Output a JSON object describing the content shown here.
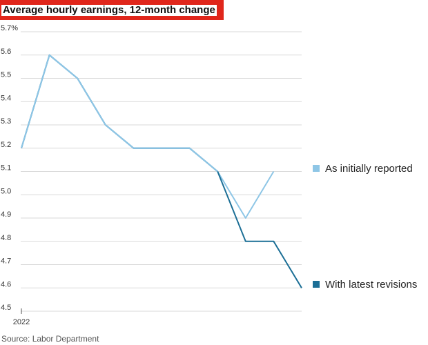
{
  "title": "Average hourly earnings, 12-month change",
  "source": "Source: Labor Department",
  "colors": {
    "title_bg": "#e0261b",
    "initial": "#8ec6e6",
    "revised": "#1c6f96",
    "grid": "#d9d9d9"
  },
  "chart_data": {
    "type": "line",
    "title": "Average hourly earnings, 12-month change",
    "x": [
      1,
      2,
      3,
      4,
      5,
      6,
      7,
      8,
      9,
      10,
      11
    ],
    "x_tick_labels": [
      {
        "x": 1,
        "label": "2022"
      }
    ],
    "y_ticks": [
      "5.7%",
      "5.6",
      "5.5",
      "5.4",
      "5.3",
      "5.2",
      "5.1",
      "5.0",
      "4.9",
      "4.8",
      "4.7",
      "4.6",
      "4.5"
    ],
    "y_tick_values": [
      5.7,
      5.6,
      5.5,
      5.4,
      5.3,
      5.2,
      5.1,
      5.0,
      4.9,
      4.8,
      4.7,
      4.6,
      4.5
    ],
    "ylim": [
      4.5,
      5.7
    ],
    "grid": true,
    "legend_placement": "right",
    "series": [
      {
        "name": "As initially reported",
        "color": "#8ec6e6",
        "values": [
          5.2,
          5.6,
          5.5,
          5.3,
          5.2,
          5.2,
          5.2,
          5.1,
          4.9,
          5.1,
          null
        ]
      },
      {
        "name": "With latest revisions",
        "color": "#1c6f96",
        "values": [
          5.2,
          5.6,
          5.5,
          5.3,
          5.2,
          5.2,
          5.2,
          5.1,
          4.8,
          4.8,
          4.6
        ]
      }
    ]
  }
}
